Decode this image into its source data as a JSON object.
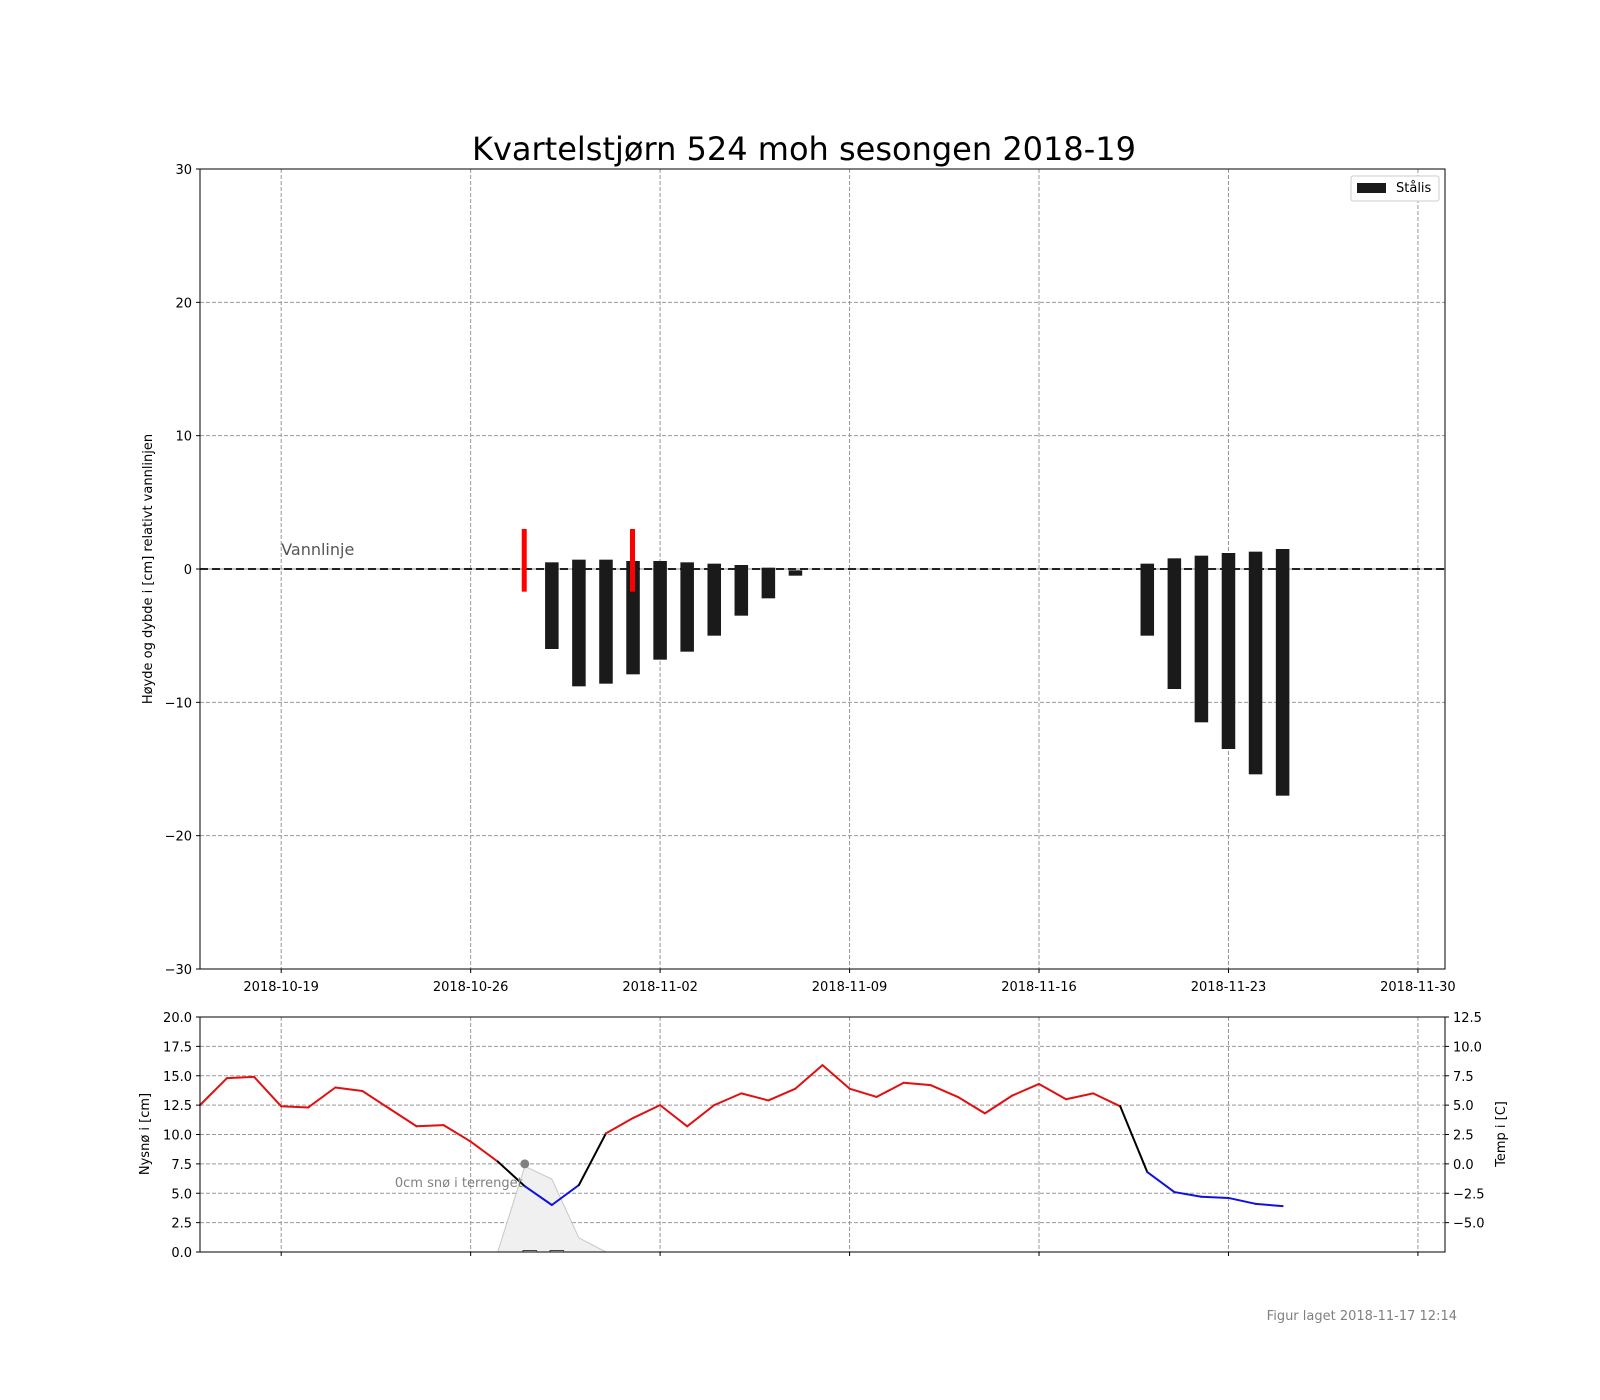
{
  "title": "Kvartelstjørn 524 moh sesongen 2018-19",
  "footer": "Figur laget 2018-11-17 12:14",
  "chart_data": [
    {
      "type": "bar",
      "ylabel": "Høyde og dybde i [cm] relativt vannlinjen",
      "ylim": [
        -30,
        30
      ],
      "yticks": [
        30,
        20,
        10,
        0,
        -10,
        -20,
        -30
      ],
      "ytick_labels": [
        "30",
        "20",
        "10",
        "0",
        "−10",
        "−20",
        "−30"
      ],
      "xlim": [
        "2018-10-16",
        "2018-12-01"
      ],
      "xticks": [
        "2018-10-19",
        "2018-10-26",
        "2018-11-02",
        "2018-11-09",
        "2018-11-16",
        "2018-11-23",
        "2018-11-30"
      ],
      "grid": true,
      "legend": {
        "position": "top-right",
        "entries": [
          {
            "label": "Stålis",
            "color": "#1a1a1a"
          }
        ]
      },
      "waterline": {
        "label": "Vannlinje",
        "y": 0
      },
      "markers": [
        {
          "date": "2018-10-28",
          "top": 3.0,
          "bottom": -1.7,
          "color": "#ff0000"
        },
        {
          "date": "2018-11-01",
          "top": 3.0,
          "bottom": -1.7,
          "color": "#ff0000"
        }
      ],
      "series": [
        {
          "name": "Stålis",
          "color": "#1a1a1a",
          "points": [
            {
              "date": "2018-10-29",
              "top": 0.5,
              "bottom": -6.0
            },
            {
              "date": "2018-10-30",
              "top": 0.7,
              "bottom": -8.8
            },
            {
              "date": "2018-10-31",
              "top": 0.7,
              "bottom": -8.6
            },
            {
              "date": "2018-11-01",
              "top": 0.6,
              "bottom": -7.9
            },
            {
              "date": "2018-11-02",
              "top": 0.6,
              "bottom": -6.8
            },
            {
              "date": "2018-11-03",
              "top": 0.5,
              "bottom": -6.2
            },
            {
              "date": "2018-11-04",
              "top": 0.4,
              "bottom": -5.0
            },
            {
              "date": "2018-11-05",
              "top": 0.3,
              "bottom": -3.5
            },
            {
              "date": "2018-11-06",
              "top": 0.1,
              "bottom": -2.2
            },
            {
              "date": "2018-11-07",
              "top": -0.1,
              "bottom": -0.5
            },
            {
              "date": "2018-11-20",
              "top": 0.4,
              "bottom": -5.0
            },
            {
              "date": "2018-11-21",
              "top": 0.8,
              "bottom": -9.0
            },
            {
              "date": "2018-11-22",
              "top": 1.0,
              "bottom": -11.5
            },
            {
              "date": "2018-11-23",
              "top": 1.2,
              "bottom": -13.5
            },
            {
              "date": "2018-11-24",
              "top": 1.3,
              "bottom": -15.4
            },
            {
              "date": "2018-11-25",
              "top": 1.5,
              "bottom": -17.0
            }
          ]
        }
      ]
    },
    {
      "type": "line",
      "ylabel": "Nysnø i [cm]",
      "y2label": "Temp i [C]",
      "ylim": [
        0,
        20
      ],
      "yticks": [
        0,
        2.5,
        5,
        7.5,
        10,
        12.5,
        15,
        17.5,
        20
      ],
      "ytick_labels": [
        "0.0",
        "2.5",
        "5.0",
        "7.5",
        "10.0",
        "12.5",
        "15.0",
        "17.5",
        "20.0"
      ],
      "y2lim": [
        -7.5,
        12.5
      ],
      "y2ticks": [
        12.5,
        10,
        7.5,
        5,
        2.5,
        0,
        -2.5,
        -5
      ],
      "y2tick_labels": [
        "12.5",
        "10.0",
        "7.5",
        "5.0",
        "2.5",
        "0.0",
        "−2.5",
        "−5.0"
      ],
      "grid": true,
      "annotation": {
        "text": "0cm snø i terrenget",
        "date": "2018-10-28",
        "y": 7.5
      },
      "snow_area": [
        {
          "date": "2018-10-27",
          "y": 0
        },
        {
          "date": "2018-10-28",
          "y": 7.3
        },
        {
          "date": "2018-10-29",
          "y": 6.2
        },
        {
          "date": "2018-10-30",
          "y": 1.2
        },
        {
          "date": "2018-10-31",
          "y": 0
        }
      ],
      "new_snow_bars": [
        {
          "date": "2018-10-28",
          "value": 0.1
        },
        {
          "date": "2018-10-29",
          "value": 0.05
        }
      ],
      "temperature": [
        {
          "date": "2018-10-16",
          "value": 5.0
        },
        {
          "date": "2018-10-17",
          "value": 7.3
        },
        {
          "date": "2018-10-18",
          "value": 7.4
        },
        {
          "date": "2018-10-19",
          "value": 4.9
        },
        {
          "date": "2018-10-20",
          "value": 4.8
        },
        {
          "date": "2018-10-21",
          "value": 6.5
        },
        {
          "date": "2018-10-22",
          "value": 6.2
        },
        {
          "date": "2018-10-23",
          "value": 4.7
        },
        {
          "date": "2018-10-24",
          "value": 3.2
        },
        {
          "date": "2018-10-25",
          "value": 3.3
        },
        {
          "date": "2018-10-26",
          "value": 1.9
        },
        {
          "date": "2018-10-27",
          "value": 0.2
        },
        {
          "date": "2018-10-28",
          "value": -1.9
        },
        {
          "date": "2018-10-29",
          "value": -3.5
        },
        {
          "date": "2018-10-30",
          "value": -1.8
        },
        {
          "date": "2018-10-31",
          "value": 2.6
        },
        {
          "date": "2018-11-01",
          "value": 3.9
        },
        {
          "date": "2018-11-02",
          "value": 5.0
        },
        {
          "date": "2018-11-03",
          "value": 3.2
        },
        {
          "date": "2018-11-04",
          "value": 5.0
        },
        {
          "date": "2018-11-05",
          "value": 6.0
        },
        {
          "date": "2018-11-06",
          "value": 5.4
        },
        {
          "date": "2018-11-07",
          "value": 6.4
        },
        {
          "date": "2018-11-08",
          "value": 8.4
        },
        {
          "date": "2018-11-09",
          "value": 6.4
        },
        {
          "date": "2018-11-10",
          "value": 5.7
        },
        {
          "date": "2018-11-11",
          "value": 6.9
        },
        {
          "date": "2018-11-12",
          "value": 6.7
        },
        {
          "date": "2018-11-13",
          "value": 5.7
        },
        {
          "date": "2018-11-14",
          "value": 4.3
        },
        {
          "date": "2018-11-15",
          "value": 5.8
        },
        {
          "date": "2018-11-16",
          "value": 6.8
        },
        {
          "date": "2018-11-17",
          "value": 5.5
        },
        {
          "date": "2018-11-18",
          "value": 6.0
        },
        {
          "date": "2018-11-19",
          "value": 4.9
        },
        {
          "date": "2018-11-20",
          "value": -0.7
        },
        {
          "date": "2018-11-21",
          "value": -2.4
        },
        {
          "date": "2018-11-22",
          "value": -2.8
        },
        {
          "date": "2018-11-23",
          "value": -2.9
        },
        {
          "date": "2018-11-24",
          "value": -3.4
        },
        {
          "date": "2018-11-25",
          "value": -3.6
        }
      ]
    }
  ]
}
